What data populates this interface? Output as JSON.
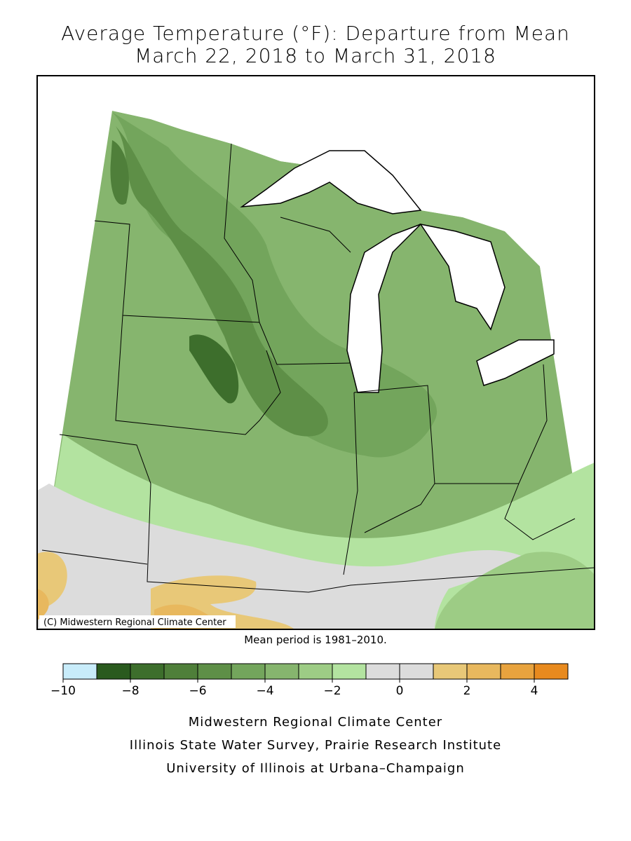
{
  "title": [
    "Average Temperature (°F): Departure from Mean",
    "March 22, 2018 to March 31, 2018"
  ],
  "map": {
    "credit": "(C) Midwestern Regional Climate Center"
  },
  "note": "Mean period is 1981–2010.",
  "legend": {
    "bins": [
      -10,
      -9,
      -8,
      -7,
      -6,
      -5,
      -4,
      -3,
      -2,
      -1,
      0,
      1,
      2,
      3,
      4,
      5
    ],
    "colors": [
      "#c8ecfa",
      "#2a5a1e",
      "#3d6e2c",
      "#4f7f3a",
      "#5e8f47",
      "#73a55c",
      "#86b56e",
      "#9dcc85",
      "#b3e3a0",
      "#dcdcdc",
      "#dcdcdc",
      "#e8c878",
      "#e8b85e",
      "#e8a33e",
      "#e88a1e"
    ],
    "ticks": [
      {
        "value": -10,
        "label": "−10"
      },
      {
        "value": -8,
        "label": "−8"
      },
      {
        "value": -6,
        "label": "−6"
      },
      {
        "value": -4,
        "label": "−4"
      },
      {
        "value": -2,
        "label": "−2"
      },
      0,
      2,
      4
    ]
  },
  "footer": [
    "Midwestern Regional Climate Center",
    "Illinois State Water Survey, Prairie Research Institute",
    "University of Illinois at Urbana–Champaign"
  ]
}
